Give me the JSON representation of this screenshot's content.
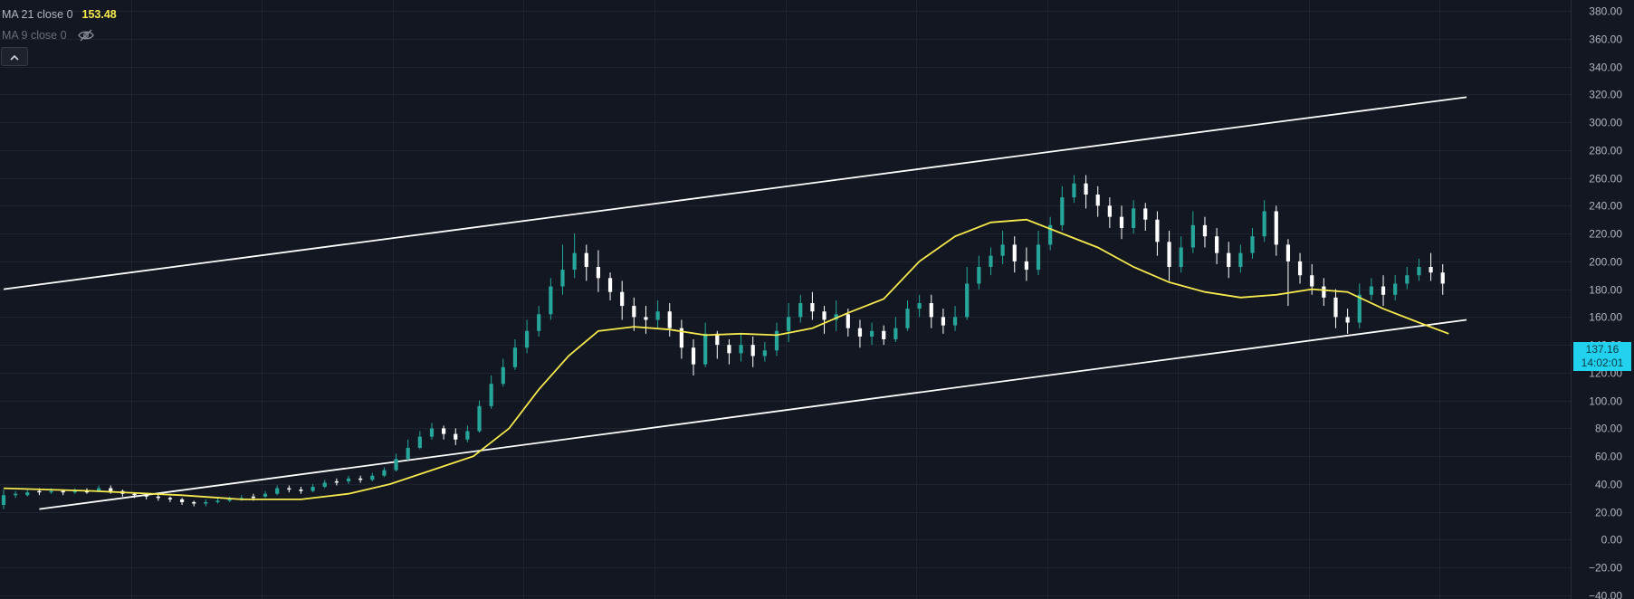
{
  "legend": {
    "ma21_label": "MA 21 close 0",
    "ma21_value": "153.48",
    "ma9_label": "MA 9 close 0"
  },
  "price_tag": {
    "price": "137.16",
    "countdown": "14:02:01"
  },
  "colors": {
    "background": "#131722",
    "grid": "#1f2330",
    "candle_up": "#26a69a",
    "candle_down": "#ffffff",
    "candle_highlight": "#eeff41",
    "ma21": "#f5e94d",
    "trendline": "#ffffff",
    "axis_text": "#b2b5be",
    "price_tag_bg": "#22d1ee"
  },
  "chart_data": {
    "type": "candlestick",
    "y_axis": {
      "ticks": [
        380,
        360,
        340,
        320,
        300,
        280,
        260,
        240,
        220,
        200,
        180,
        160,
        140,
        120,
        100,
        80,
        60,
        40,
        20,
        0,
        -20,
        -40
      ],
      "tick_labels": [
        "380.00",
        "360.00",
        "340.00",
        "320.00",
        "300.00",
        "280.00",
        "260.00",
        "240.00",
        "220.00",
        "200.00",
        "180.00",
        "160.00",
        "140.00",
        "120.00",
        "100.00",
        "80.00",
        "60.00",
        "40.00",
        "20.00",
        "0.00",
        "−20.00",
        "−40.00"
      ],
      "range": [
        -40,
        380
      ]
    },
    "grid": true,
    "bar_index_range": [
      0,
      246
    ],
    "series": [
      {
        "name": "MA 21 close 0",
        "type": "line",
        "points": [
          [
            0,
            37
          ],
          [
            15,
            35
          ],
          [
            30,
            32
          ],
          [
            40,
            29
          ],
          [
            50,
            29
          ],
          [
            58,
            33
          ],
          [
            65,
            40
          ],
          [
            72,
            50
          ],
          [
            79,
            60
          ],
          [
            85,
            80
          ],
          [
            90,
            108
          ],
          [
            95,
            132
          ],
          [
            100,
            150
          ],
          [
            106,
            153
          ],
          [
            112,
            151
          ],
          [
            118,
            147
          ],
          [
            124,
            148
          ],
          [
            130,
            147
          ],
          [
            136,
            152
          ],
          [
            142,
            163
          ],
          [
            148,
            173
          ],
          [
            154,
            200
          ],
          [
            160,
            218
          ],
          [
            166,
            228
          ],
          [
            172,
            230
          ],
          [
            178,
            220
          ],
          [
            184,
            210
          ],
          [
            190,
            196
          ],
          [
            196,
            185
          ],
          [
            202,
            178
          ],
          [
            208,
            174
          ],
          [
            214,
            176
          ],
          [
            220,
            180
          ],
          [
            226,
            178
          ],
          [
            232,
            166
          ],
          [
            238,
            156
          ],
          [
            243,
            148
          ]
        ]
      }
    ],
    "candles": [
      [
        0,
        25,
        32,
        22,
        36,
        "up"
      ],
      [
        2,
        32,
        33,
        30,
        35,
        "up"
      ],
      [
        4,
        32,
        34,
        31,
        36,
        "up"
      ],
      [
        6,
        34,
        35,
        32,
        37,
        "down"
      ],
      [
        8,
        34,
        35,
        33,
        37,
        "up"
      ],
      [
        10,
        35,
        34,
        32,
        36,
        "down"
      ],
      [
        12,
        34,
        35,
        33,
        37,
        "up"
      ],
      [
        14,
        34,
        35,
        33,
        37,
        "down"
      ],
      [
        16,
        35,
        37,
        34,
        39,
        "up"
      ],
      [
        18,
        37,
        35,
        33,
        39,
        "down"
      ],
      [
        20,
        35,
        33,
        31,
        36,
        "down"
      ],
      [
        22,
        33,
        32,
        30,
        34,
        "down"
      ],
      [
        24,
        32,
        31,
        29,
        33,
        "down"
      ],
      [
        26,
        31,
        30,
        28,
        33,
        "down"
      ],
      [
        28,
        30,
        29,
        27,
        31,
        "down"
      ],
      [
        30,
        29,
        27,
        25,
        30,
        "down"
      ],
      [
        32,
        27,
        26,
        24,
        28,
        "down"
      ],
      [
        34,
        26,
        27,
        24,
        29,
        "up"
      ],
      [
        36,
        27,
        28,
        26,
        30,
        "up"
      ],
      [
        38,
        28,
        29,
        27,
        31,
        "up"
      ],
      [
        40,
        29,
        30,
        28,
        32,
        "up"
      ],
      [
        42,
        30,
        31,
        28,
        33,
        "down"
      ],
      [
        44,
        31,
        33,
        30,
        35,
        "up"
      ],
      [
        46,
        33,
        37,
        32,
        39,
        "up"
      ],
      [
        48,
        37,
        36,
        34,
        39,
        "down"
      ],
      [
        50,
        36,
        35,
        33,
        38,
        "down"
      ],
      [
        52,
        35,
        38,
        34,
        40,
        "up"
      ],
      [
        54,
        38,
        41,
        37,
        43,
        "up"
      ],
      [
        56,
        41,
        42,
        39,
        44,
        "down"
      ],
      [
        58,
        42,
        44,
        40,
        46,
        "up"
      ],
      [
        60,
        44,
        43,
        41,
        46,
        "down"
      ],
      [
        62,
        43,
        46,
        42,
        48,
        "up"
      ],
      [
        64,
        46,
        50,
        45,
        52,
        "up"
      ],
      [
        66,
        50,
        58,
        49,
        62,
        "up"
      ],
      [
        68,
        58,
        66,
        57,
        72,
        "up"
      ],
      [
        70,
        66,
        74,
        65,
        78,
        "up"
      ],
      [
        72,
        74,
        80,
        72,
        84,
        "up"
      ],
      [
        74,
        80,
        76,
        72,
        82,
        "down"
      ],
      [
        76,
        76,
        72,
        68,
        80,
        "down"
      ],
      [
        78,
        72,
        78,
        70,
        82,
        "up"
      ],
      [
        80,
        78,
        96,
        77,
        100,
        "up"
      ],
      [
        82,
        96,
        112,
        94,
        118,
        "up"
      ],
      [
        84,
        112,
        124,
        110,
        130,
        "up"
      ],
      [
        86,
        124,
        138,
        122,
        144,
        "up"
      ],
      [
        88,
        138,
        150,
        134,
        158,
        "up"
      ],
      [
        90,
        150,
        162,
        146,
        168,
        "up"
      ],
      [
        92,
        162,
        182,
        158,
        188,
        "up"
      ],
      [
        94,
        182,
        194,
        176,
        212,
        "up"
      ],
      [
        96,
        194,
        206,
        188,
        220,
        "up"
      ],
      [
        98,
        206,
        196,
        186,
        212,
        "down"
      ],
      [
        100,
        196,
        188,
        178,
        208,
        "down"
      ],
      [
        102,
        188,
        178,
        172,
        192,
        "down"
      ],
      [
        104,
        178,
        168,
        158,
        186,
        "down"
      ],
      [
        106,
        168,
        160,
        150,
        174,
        "down"
      ],
      [
        108,
        160,
        158,
        148,
        168,
        "down"
      ],
      [
        110,
        158,
        164,
        152,
        172,
        "up"
      ],
      [
        112,
        164,
        152,
        146,
        170,
        "down"
      ],
      [
        114,
        152,
        138,
        130,
        158,
        "down"
      ],
      [
        116,
        138,
        126,
        118,
        144,
        "down"
      ],
      [
        118,
        126,
        148,
        124,
        156,
        "up"
      ],
      [
        120,
        148,
        140,
        130,
        150,
        "down"
      ],
      [
        122,
        140,
        134,
        126,
        144,
        "down"
      ],
      [
        124,
        134,
        140,
        128,
        148,
        "up"
      ],
      [
        126,
        140,
        132,
        124,
        146,
        "down"
      ],
      [
        128,
        132,
        136,
        128,
        142,
        "up"
      ],
      [
        130,
        136,
        150,
        132,
        156,
        "up"
      ],
      [
        132,
        150,
        160,
        142,
        170,
        "up"
      ],
      [
        134,
        160,
        170,
        156,
        176,
        "up"
      ],
      [
        136,
        170,
        164,
        158,
        178,
        "down"
      ],
      [
        138,
        164,
        158,
        148,
        168,
        "down"
      ],
      [
        140,
        158,
        162,
        150,
        172,
        "up"
      ],
      [
        142,
        162,
        152,
        146,
        166,
        "down"
      ],
      [
        144,
        152,
        146,
        138,
        158,
        "down"
      ],
      [
        146,
        146,
        150,
        140,
        156,
        "up"
      ],
      [
        148,
        150,
        144,
        140,
        154,
        "down"
      ],
      [
        150,
        144,
        152,
        142,
        160,
        "up"
      ],
      [
        152,
        152,
        166,
        150,
        172,
        "up"
      ],
      [
        154,
        166,
        170,
        160,
        176,
        "up"
      ],
      [
        156,
        170,
        160,
        152,
        176,
        "down"
      ],
      [
        158,
        160,
        154,
        148,
        166,
        "down"
      ],
      [
        160,
        154,
        160,
        150,
        168,
        "up"
      ],
      [
        162,
        160,
        184,
        158,
        196,
        "up"
      ],
      [
        164,
        184,
        196,
        180,
        204,
        "up"
      ],
      [
        166,
        196,
        204,
        190,
        210,
        "up"
      ],
      [
        168,
        204,
        212,
        198,
        222,
        "up"
      ],
      [
        170,
        212,
        200,
        192,
        218,
        "down"
      ],
      [
        172,
        200,
        194,
        186,
        210,
        "down"
      ],
      [
        174,
        194,
        212,
        190,
        222,
        "up"
      ],
      [
        176,
        212,
        226,
        208,
        232,
        "up"
      ],
      [
        178,
        226,
        246,
        222,
        254,
        "up"
      ],
      [
        180,
        246,
        256,
        242,
        262,
        "up"
      ],
      [
        182,
        256,
        248,
        238,
        262,
        "down"
      ],
      [
        184,
        248,
        240,
        232,
        254,
        "down"
      ],
      [
        186,
        240,
        232,
        224,
        246,
        "down"
      ],
      [
        188,
        232,
        224,
        216,
        240,
        "down"
      ],
      [
        190,
        224,
        238,
        220,
        244,
        "up"
      ],
      [
        192,
        238,
        230,
        222,
        242,
        "down"
      ],
      [
        194,
        230,
        214,
        204,
        236,
        "down"
      ],
      [
        196,
        214,
        196,
        186,
        222,
        "down"
      ],
      [
        198,
        196,
        210,
        192,
        218,
        "up"
      ],
      [
        200,
        210,
        226,
        206,
        236,
        "up"
      ],
      [
        202,
        226,
        218,
        210,
        232,
        "down"
      ],
      [
        204,
        218,
        206,
        198,
        224,
        "down"
      ],
      [
        206,
        206,
        196,
        188,
        214,
        "down"
      ],
      [
        208,
        196,
        206,
        192,
        212,
        "up"
      ],
      [
        210,
        206,
        218,
        202,
        224,
        "up"
      ],
      [
        212,
        218,
        236,
        214,
        244,
        "up"
      ],
      [
        214,
        236,
        212,
        204,
        240,
        "down"
      ],
      [
        216,
        212,
        200,
        168,
        216,
        "down"
      ],
      [
        218,
        200,
        190,
        184,
        206,
        "down"
      ],
      [
        220,
        190,
        182,
        176,
        198,
        "down"
      ],
      [
        222,
        182,
        174,
        168,
        188,
        "down"
      ],
      [
        224,
        174,
        160,
        152,
        180,
        "down"
      ],
      [
        226,
        160,
        156,
        148,
        166,
        "down"
      ],
      [
        228,
        156,
        176,
        152,
        184,
        "up"
      ],
      [
        230,
        176,
        182,
        172,
        188,
        "up"
      ],
      [
        232,
        182,
        176,
        168,
        190,
        "down"
      ],
      [
        234,
        176,
        184,
        172,
        190,
        "up"
      ],
      [
        236,
        184,
        190,
        180,
        196,
        "up"
      ],
      [
        238,
        190,
        196,
        186,
        202,
        "up"
      ],
      [
        240,
        196,
        192,
        186,
        206,
        "down"
      ],
      [
        242,
        192,
        184,
        176,
        198,
        "down"
      ]
    ],
    "trendlines": [
      {
        "name": "upper-channel",
        "from": [
          0,
          180
        ],
        "to": [
          246,
          318
        ]
      },
      {
        "name": "lower-channel",
        "from": [
          6,
          22
        ],
        "to": [
          246,
          158
        ]
      }
    ]
  }
}
